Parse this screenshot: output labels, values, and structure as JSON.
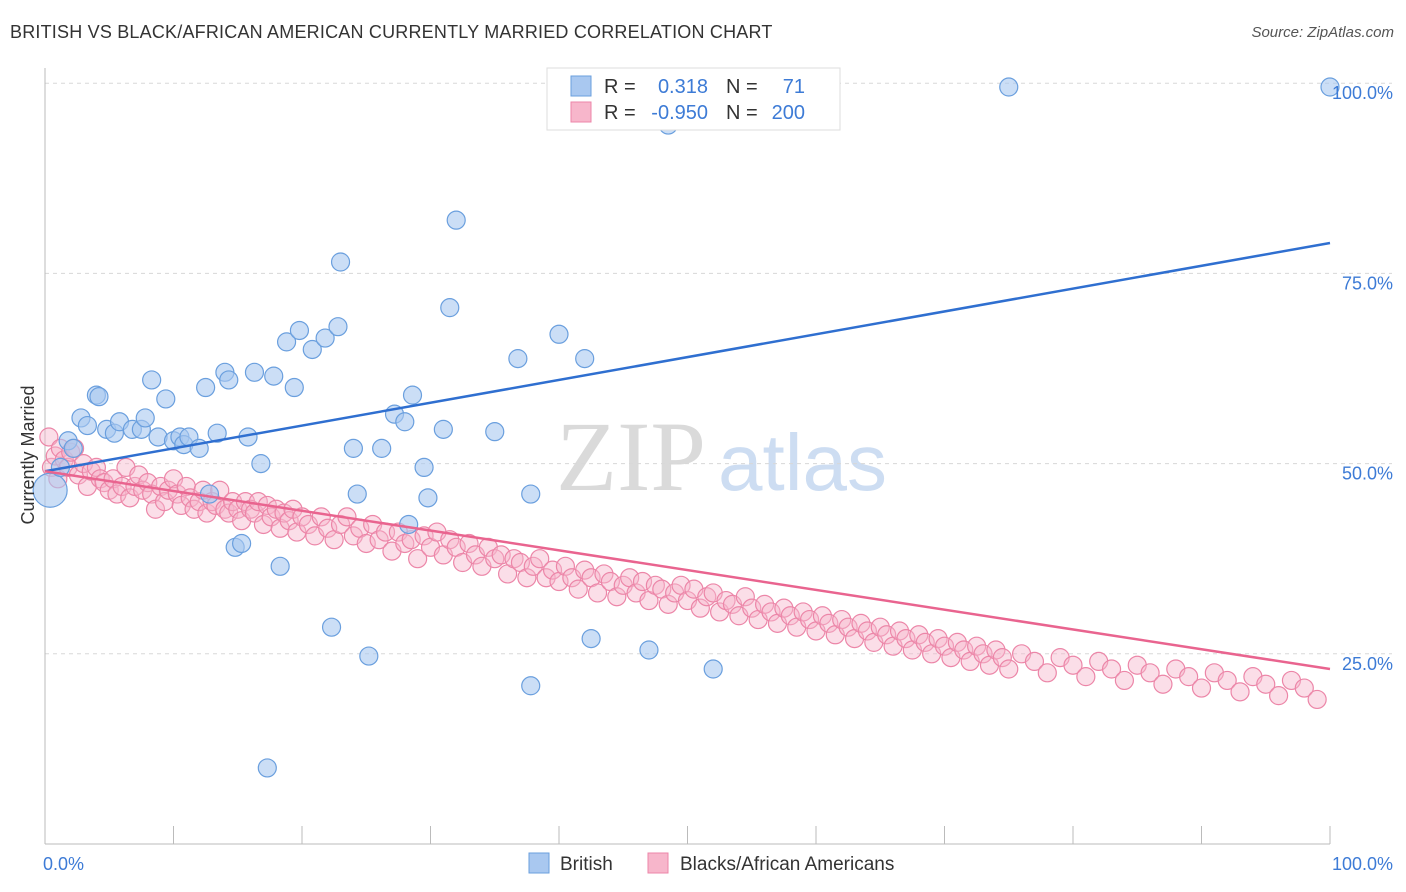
{
  "title": "BRITISH VS BLACK/AFRICAN AMERICAN CURRENTLY MARRIED CORRELATION CHART",
  "source": "Source: ZipAtlas.com",
  "watermark": {
    "zip": "ZIP",
    "atlas": "atlas"
  },
  "colors": {
    "blue_fill": "#a9c8f0",
    "blue_stroke": "#6a9fde",
    "blue_line": "#2f6fd0",
    "blue_text": "#3d7bd6",
    "pink_fill": "#f7b6cb",
    "pink_stroke": "#ec86a8",
    "pink_line": "#e9648f",
    "grid": "#d8d8d8",
    "axis": "#bbbbbb",
    "text_dark": "#333333"
  },
  "stats": {
    "r_label": "R =",
    "n_label": "N =",
    "rows": [
      {
        "series": "British",
        "r": "0.318",
        "n": "71"
      },
      {
        "series": "Blacks/African Americans",
        "r": "-0.950",
        "n": "200"
      }
    ]
  },
  "legend": {
    "items": [
      "British",
      "Blacks/African Americans"
    ]
  },
  "chart_data": {
    "type": "scatter",
    "title": "BRITISH VS BLACK/AFRICAN AMERICAN CURRENTLY MARRIED CORRELATION CHART",
    "xlabel": "",
    "ylabel": "Currently Married",
    "xlim": [
      0,
      100
    ],
    "ylim": [
      0,
      102
    ],
    "x_tick_labels": [
      "0.0%",
      "100.0%"
    ],
    "y_ticks": [
      25,
      50,
      75,
      100
    ],
    "y_tick_labels": [
      "25.0%",
      "50.0%",
      "75.0%",
      "100.0%"
    ],
    "grid": true,
    "legend_position": "bottom-center",
    "series": [
      {
        "name": "British",
        "color": "#a9c8f0",
        "trend": {
          "x": [
            0,
            100
          ],
          "y": [
            49.0,
            79.0
          ]
        },
        "points": [
          [
            0.4,
            46.5
          ],
          [
            1.2,
            49.5
          ],
          [
            1.8,
            53
          ],
          [
            2.2,
            52
          ],
          [
            2.8,
            56
          ],
          [
            3.3,
            55
          ],
          [
            4,
            59
          ],
          [
            4.2,
            58.8
          ],
          [
            4.8,
            54.5
          ],
          [
            5.4,
            54
          ],
          [
            5.8,
            55.5
          ],
          [
            6.8,
            54.5
          ],
          [
            7.5,
            54.5
          ],
          [
            7.8,
            56
          ],
          [
            8.3,
            61
          ],
          [
            8.8,
            53.5
          ],
          [
            9.4,
            58.5
          ],
          [
            10,
            53
          ],
          [
            10.5,
            53.5
          ],
          [
            10.8,
            52.5
          ],
          [
            11.2,
            53.5
          ],
          [
            12,
            52
          ],
          [
            12.5,
            60
          ],
          [
            12.8,
            46
          ],
          [
            13.4,
            54
          ],
          [
            14,
            62
          ],
          [
            14.3,
            61
          ],
          [
            14.8,
            39
          ],
          [
            15.3,
            39.5
          ],
          [
            15.8,
            53.5
          ],
          [
            16.3,
            62
          ],
          [
            16.8,
            50
          ],
          [
            17.3,
            10
          ],
          [
            17.8,
            61.5
          ],
          [
            18.3,
            36.5
          ],
          [
            18.8,
            66
          ],
          [
            19.4,
            60
          ],
          [
            19.8,
            67.5
          ],
          [
            20.8,
            65
          ],
          [
            21.8,
            66.5
          ],
          [
            22.3,
            28.5
          ],
          [
            22.8,
            68
          ],
          [
            23,
            76.5
          ],
          [
            24,
            52
          ],
          [
            24.3,
            46
          ],
          [
            25.2,
            24.7
          ],
          [
            26.2,
            52
          ],
          [
            27.2,
            56.5
          ],
          [
            28,
            55.5
          ],
          [
            28.3,
            42
          ],
          [
            28.6,
            59
          ],
          [
            29.5,
            49.5
          ],
          [
            29.8,
            45.5
          ],
          [
            31,
            54.5
          ],
          [
            31.5,
            70.5
          ],
          [
            32,
            82
          ],
          [
            35,
            54.2
          ],
          [
            36.8,
            63.8
          ],
          [
            37.8,
            46
          ],
          [
            37.8,
            20.8
          ],
          [
            40,
            67
          ],
          [
            42,
            63.8
          ],
          [
            42.5,
            27
          ],
          [
            47,
            25.5
          ],
          [
            48.5,
            94.5
          ],
          [
            49,
            98.5
          ],
          [
            52,
            23
          ],
          [
            75,
            99.5
          ],
          [
            100,
            99.5
          ]
        ]
      },
      {
        "name": "Blacks/African Americans",
        "color": "#f7b6cb",
        "trend": {
          "x": [
            0,
            100
          ],
          "y": [
            49.0,
            23.0
          ]
        },
        "points": [
          [
            0.3,
            53.5
          ],
          [
            0.5,
            49.5
          ],
          [
            0.8,
            51
          ],
          [
            1,
            48
          ],
          [
            1.2,
            52
          ],
          [
            1.5,
            50.5
          ],
          [
            1.8,
            49.5
          ],
          [
            2,
            51.5
          ],
          [
            2.3,
            52
          ],
          [
            2.6,
            48.5
          ],
          [
            3,
            50
          ],
          [
            3.3,
            47
          ],
          [
            3.6,
            49
          ],
          [
            4,
            49.5
          ],
          [
            4.3,
            48
          ],
          [
            4.6,
            47.5
          ],
          [
            5,
            46.5
          ],
          [
            5.3,
            48
          ],
          [
            5.6,
            46
          ],
          [
            6,
            47
          ],
          [
            6.3,
            49.5
          ],
          [
            6.6,
            45.5
          ],
          [
            7,
            47
          ],
          [
            7.3,
            48.5
          ],
          [
            7.6,
            46.5
          ],
          [
            8,
            47.5
          ],
          [
            8.3,
            46
          ],
          [
            8.6,
            44
          ],
          [
            9,
            47
          ],
          [
            9.3,
            45
          ],
          [
            9.6,
            46.5
          ],
          [
            10,
            48
          ],
          [
            10.3,
            46
          ],
          [
            10.6,
            44.5
          ],
          [
            11,
            47
          ],
          [
            11.3,
            45.5
          ],
          [
            11.6,
            44
          ],
          [
            12,
            45
          ],
          [
            12.3,
            46.5
          ],
          [
            12.6,
            43.5
          ],
          [
            13,
            45
          ],
          [
            13.3,
            44.5
          ],
          [
            13.6,
            46.5
          ],
          [
            14,
            44
          ],
          [
            14.3,
            43.5
          ],
          [
            14.6,
            45
          ],
          [
            15,
            44
          ],
          [
            15.3,
            42.5
          ],
          [
            15.6,
            45
          ],
          [
            16,
            44
          ],
          [
            16.3,
            43.5
          ],
          [
            16.6,
            45
          ],
          [
            17,
            42
          ],
          [
            17.3,
            44.5
          ],
          [
            17.6,
            43
          ],
          [
            18,
            44
          ],
          [
            18.3,
            41.5
          ],
          [
            18.6,
            43.5
          ],
          [
            19,
            42.5
          ],
          [
            19.3,
            44
          ],
          [
            19.6,
            41
          ],
          [
            20,
            43
          ],
          [
            20.5,
            42
          ],
          [
            21,
            40.5
          ],
          [
            21.5,
            43
          ],
          [
            22,
            41.5
          ],
          [
            22.5,
            40
          ],
          [
            23,
            42
          ],
          [
            23.5,
            43
          ],
          [
            24,
            40.5
          ],
          [
            24.5,
            41.5
          ],
          [
            25,
            39.5
          ],
          [
            25.5,
            42
          ],
          [
            26,
            40
          ],
          [
            26.5,
            41
          ],
          [
            27,
            38.5
          ],
          [
            27.5,
            41
          ],
          [
            28,
            39.5
          ],
          [
            28.5,
            40
          ],
          [
            29,
            37.5
          ],
          [
            29.5,
            40.5
          ],
          [
            30,
            39
          ],
          [
            30.5,
            41
          ],
          [
            31,
            38
          ],
          [
            31.5,
            40
          ],
          [
            32,
            39
          ],
          [
            32.5,
            37
          ],
          [
            33,
            39.5
          ],
          [
            33.5,
            38
          ],
          [
            34,
            36.5
          ],
          [
            34.5,
            39
          ],
          [
            35,
            37.5
          ],
          [
            35.5,
            38
          ],
          [
            36,
            35.5
          ],
          [
            36.5,
            37.5
          ],
          [
            37,
            37
          ],
          [
            37.5,
            35
          ],
          [
            38,
            36.5
          ],
          [
            38.5,
            37.5
          ],
          [
            39,
            35
          ],
          [
            39.5,
            36
          ],
          [
            40,
            34.5
          ],
          [
            40.5,
            36.5
          ],
          [
            41,
            35
          ],
          [
            41.5,
            33.5
          ],
          [
            42,
            36
          ],
          [
            42.5,
            35
          ],
          [
            43,
            33
          ],
          [
            43.5,
            35.5
          ],
          [
            44,
            34.5
          ],
          [
            44.5,
            32.5
          ],
          [
            45,
            34
          ],
          [
            45.5,
            35
          ],
          [
            46,
            33
          ],
          [
            46.5,
            34.5
          ],
          [
            47,
            32
          ],
          [
            47.5,
            34
          ],
          [
            48,
            33.5
          ],
          [
            48.5,
            31.5
          ],
          [
            49,
            33
          ],
          [
            49.5,
            34
          ],
          [
            50,
            32
          ],
          [
            50.5,
            33.5
          ],
          [
            51,
            31
          ],
          [
            51.5,
            32.5
          ],
          [
            52,
            33
          ],
          [
            52.5,
            30.5
          ],
          [
            53,
            32
          ],
          [
            53.5,
            31.5
          ],
          [
            54,
            30
          ],
          [
            54.5,
            32.5
          ],
          [
            55,
            31
          ],
          [
            55.5,
            29.5
          ],
          [
            56,
            31.5
          ],
          [
            56.5,
            30.5
          ],
          [
            57,
            29
          ],
          [
            57.5,
            31
          ],
          [
            58,
            30
          ],
          [
            58.5,
            28.5
          ],
          [
            59,
            30.5
          ],
          [
            59.5,
            29.5
          ],
          [
            60,
            28
          ],
          [
            60.5,
            30
          ],
          [
            61,
            29
          ],
          [
            61.5,
            27.5
          ],
          [
            62,
            29.5
          ],
          [
            62.5,
            28.5
          ],
          [
            63,
            27
          ],
          [
            63.5,
            29
          ],
          [
            64,
            28
          ],
          [
            64.5,
            26.5
          ],
          [
            65,
            28.5
          ],
          [
            65.5,
            27.5
          ],
          [
            66,
            26
          ],
          [
            66.5,
            28
          ],
          [
            67,
            27
          ],
          [
            67.5,
            25.5
          ],
          [
            68,
            27.5
          ],
          [
            68.5,
            26.5
          ],
          [
            69,
            25
          ],
          [
            69.5,
            27
          ],
          [
            70,
            26
          ],
          [
            70.5,
            24.5
          ],
          [
            71,
            26.5
          ],
          [
            71.5,
            25.5
          ],
          [
            72,
            24
          ],
          [
            72.5,
            26
          ],
          [
            73,
            25
          ],
          [
            73.5,
            23.5
          ],
          [
            74,
            25.5
          ],
          [
            74.5,
            24.5
          ],
          [
            75,
            23
          ],
          [
            76,
            25
          ],
          [
            77,
            24
          ],
          [
            78,
            22.5
          ],
          [
            79,
            24.5
          ],
          [
            80,
            23.5
          ],
          [
            81,
            22
          ],
          [
            82,
            24
          ],
          [
            83,
            23
          ],
          [
            84,
            21.5
          ],
          [
            85,
            23.5
          ],
          [
            86,
            22.5
          ],
          [
            87,
            21
          ],
          [
            88,
            23
          ],
          [
            89,
            22
          ],
          [
            90,
            20.5
          ],
          [
            91,
            22.5
          ],
          [
            92,
            21.5
          ],
          [
            93,
            20
          ],
          [
            94,
            22
          ],
          [
            95,
            21
          ],
          [
            96,
            19.5
          ],
          [
            97,
            21.5
          ],
          [
            98,
            20.5
          ],
          [
            99,
            19
          ]
        ]
      }
    ]
  }
}
